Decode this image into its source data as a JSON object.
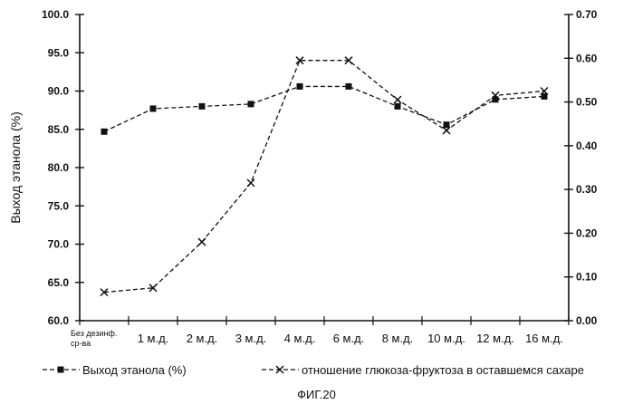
{
  "figure_label": "ФИГ.20",
  "chart_data": {
    "type": "line",
    "categories": [
      "Без дезинф. ср-ва",
      "1 м.д.",
      "2 м.д.",
      "3 м.д.",
      "4 м.д.",
      "6 м.д.",
      "8 м.д.",
      "10 м.д.",
      "12 м.д.",
      "16 м.д."
    ],
    "ylabel": "Выход этанола (%)",
    "ylim": [
      60.0,
      100.0
    ],
    "yticks": [
      "60.0",
      "65.0",
      "70.0",
      "75.0",
      "80.0",
      "85.0",
      "90.0",
      "95.0",
      "100.0"
    ],
    "y2lim": [
      0.0,
      0.7
    ],
    "y2ticks": [
      "0.00",
      "0.10",
      "0.20",
      "0.30",
      "0.40",
      "0.50",
      "0.60",
      "0.70"
    ],
    "legend_position": "bottom",
    "series": [
      {
        "name": "Выход этанола (%)",
        "axis": "left",
        "marker": "square",
        "x": [
          0,
          1,
          2,
          3,
          4,
          5,
          6,
          7,
          8,
          9
        ],
        "values": [
          84.7,
          87.7,
          88.0,
          88.3,
          90.6,
          90.6,
          88.0,
          85.6,
          88.9,
          89.3
        ]
      },
      {
        "name": "отношение глюкоза-фруктоза в оставшемся сахаре",
        "axis": "right",
        "marker": "x",
        "x": [
          0,
          1,
          2,
          3,
          4,
          5,
          6,
          7,
          8,
          9
        ],
        "values": [
          0.065,
          0.075,
          0.18,
          0.315,
          0.595,
          0.595,
          0.505,
          0.435,
          0.515,
          0.525
        ]
      }
    ]
  }
}
